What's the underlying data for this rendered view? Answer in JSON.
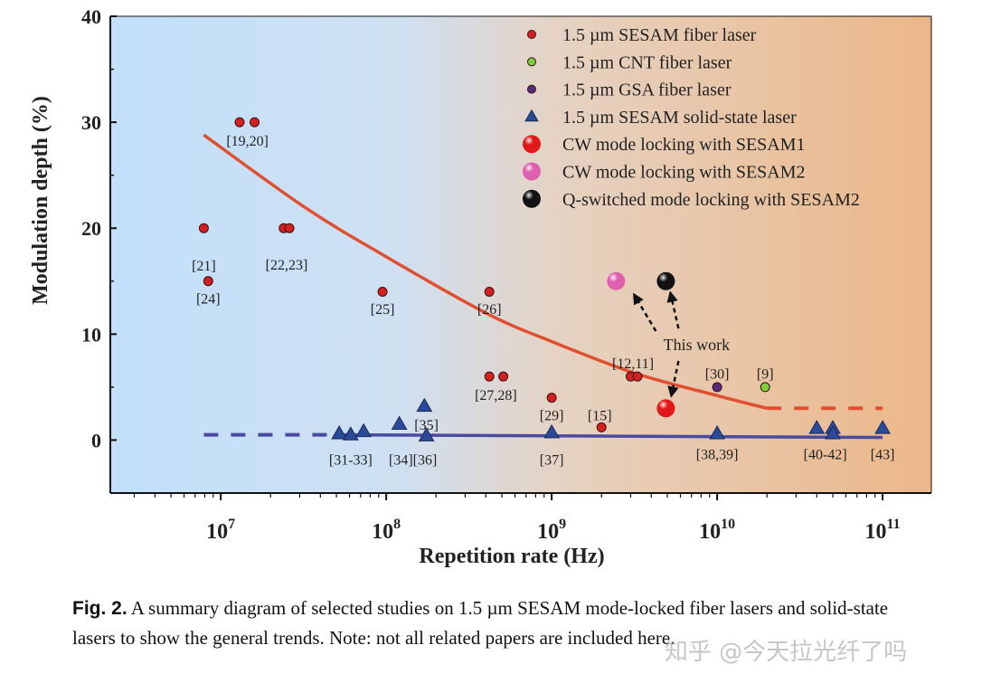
{
  "chart_data": {
    "type": "scatter",
    "title": "",
    "xlabel": "Repetition rate (Hz)",
    "ylabel": "Modulation depth (%)",
    "xscale": "log",
    "xlim": [
      2150000.0,
      197000000000.0
    ],
    "ylim": [
      -5,
      40
    ],
    "xticks": [
      {
        "value": 10000000.0,
        "base": "10",
        "exp": "7"
      },
      {
        "value": 100000000.0,
        "base": "10",
        "exp": "8"
      },
      {
        "value": 1000000000.0,
        "base": "10",
        "exp": "9"
      },
      {
        "value": 10000000000.0,
        "base": "10",
        "exp": "10"
      },
      {
        "value": 100000000000.0,
        "base": "10",
        "exp": "11"
      }
    ],
    "yticks": [
      0,
      10,
      20,
      30,
      40
    ],
    "grid": false,
    "legend_placement": "top-right",
    "background": "gradient light blue to light orange",
    "series": [
      {
        "name": "1.5 µm SESAM fiber laser",
        "marker": "circle-small",
        "color": "#d42020",
        "points": [
          {
            "x": 13000000.0,
            "y": 30
          },
          {
            "x": 16000000.0,
            "y": 30
          },
          {
            "x": 7900000.0,
            "y": 20
          },
          {
            "x": 8400000.0,
            "y": 15
          },
          {
            "x": 24000000.0,
            "y": 20
          },
          {
            "x": 26000000.0,
            "y": 20
          },
          {
            "x": 95000000.0,
            "y": 14
          },
          {
            "x": 420000000.0,
            "y": 14
          },
          {
            "x": 420000000.0,
            "y": 6
          },
          {
            "x": 510000000.0,
            "y": 6
          },
          {
            "x": 1000000000.0,
            "y": 4
          },
          {
            "x": 2000000000.0,
            "y": 1.2
          },
          {
            "x": 3000000000.0,
            "y": 6
          },
          {
            "x": 3300000000.0,
            "y": 6
          }
        ]
      },
      {
        "name": "1.5 µm CNT fiber laser",
        "marker": "circle-small",
        "color": "#7ccf3a",
        "points": [
          {
            "x": 19500000000.0,
            "y": 5
          }
        ]
      },
      {
        "name": "1.5 µm GSA fiber laser",
        "marker": "circle-small",
        "color": "#5a2a7a",
        "points": [
          {
            "x": 10000000000.0,
            "y": 5
          }
        ]
      },
      {
        "name": "1.5 µm SESAM solid-state laser",
        "marker": "triangle",
        "color": "#2b4a9a",
        "points": [
          {
            "x": 52000000.0,
            "y": 0.6
          },
          {
            "x": 61000000.0,
            "y": 0.5
          },
          {
            "x": 73000000.0,
            "y": 0.8
          },
          {
            "x": 120000000.0,
            "y": 1.5
          },
          {
            "x": 170000000.0,
            "y": 3.2
          },
          {
            "x": 175000000.0,
            "y": 0.4
          },
          {
            "x": 1000000000.0,
            "y": 0.7
          },
          {
            "x": 10000000000.0,
            "y": 0.6
          },
          {
            "x": 40000000000.0,
            "y": 1.1
          },
          {
            "x": 50000000000.0,
            "y": 1.1
          },
          {
            "x": 50000000000.0,
            "y": 0.6
          },
          {
            "x": 100000000000.0,
            "y": 1.1
          }
        ]
      },
      {
        "name": "CW mode locking with SESAM1",
        "marker": "sphere",
        "color": "#e01818",
        "points": [
          {
            "x": 4900000000.0,
            "y": 3
          }
        ]
      },
      {
        "name": "CW mode locking with SESAM2",
        "marker": "sphere",
        "color": "#e060b0",
        "points": [
          {
            "x": 2450000000.0,
            "y": 15
          }
        ]
      },
      {
        "name": "Q-switched mode locking with SESAM2",
        "marker": "sphere",
        "color": "#111111",
        "points": [
          {
            "x": 4900000000.0,
            "y": 15
          }
        ]
      }
    ],
    "trend_lines": [
      {
        "color": "#e05030",
        "solid": [
          [
            7900000.0,
            28.8
          ],
          [
            32000000.0,
            22
          ],
          [
            100000000.0,
            17.3
          ],
          [
            400000000.0,
            12
          ],
          [
            1000000000.0,
            9.3
          ],
          [
            3200000000.0,
            6.3
          ],
          [
            10000000000.0,
            4.2
          ],
          [
            20000000000.0,
            3
          ]
        ],
        "dashed": [
          [
            20000000000.0,
            3
          ],
          [
            100000000000.0,
            3
          ]
        ]
      },
      {
        "color": "#4a4aa0",
        "dashed": [
          [
            7900000.0,
            0.5
          ],
          [
            50000000.0,
            0.5
          ]
        ],
        "solid": [
          [
            50000000.0,
            0.5
          ],
          [
            100000000000.0,
            0.25
          ]
        ]
      }
    ],
    "point_labels": [
      {
        "text": "[19,20]",
        "x": 14500000.0,
        "y": 28.3
      },
      {
        "text": "[21]",
        "x": 7900000.0,
        "y": 16.5
      },
      {
        "text": "[24]",
        "x": 8400000.0,
        "y": 13.4
      },
      {
        "text": "[22,23]",
        "x": 25000000.0,
        "y": 16.6
      },
      {
        "text": "[25]",
        "x": 95000000.0,
        "y": 12.4
      },
      {
        "text": "[26]",
        "x": 420000000.0,
        "y": 12.4
      },
      {
        "text": "[27,28]",
        "x": 460000000.0,
        "y": 4.3
      },
      {
        "text": "[29]",
        "x": 1000000000.0,
        "y": 2.4
      },
      {
        "text": "[15]",
        "x": 1950000000.0,
        "y": 2.4
      },
      {
        "text": "[12,11]",
        "x": 3100000000.0,
        "y": 7.3
      },
      {
        "text": "[30]",
        "x": 10000000000.0,
        "y": 6.3
      },
      {
        "text": "[9]",
        "x": 19500000000.0,
        "y": 6.3
      },
      {
        "text": "[35]",
        "x": 175000000.0,
        "y": 1.5
      },
      {
        "text": "[31-33]",
        "x": 61000000.0,
        "y": -1.8
      },
      {
        "text": "[34][36]",
        "x": 145000000.0,
        "y": -1.8
      },
      {
        "text": "[37]",
        "x": 1000000000.0,
        "y": -1.8
      },
      {
        "text": "[38,39]",
        "x": 10000000000.0,
        "y": -1.3
      },
      {
        "text": "[40-42]",
        "x": 45000000000.0,
        "y": -1.3
      },
      {
        "text": "[43]",
        "x": 100000000000.0,
        "y": -1.3
      }
    ],
    "annotation": {
      "text": "This work",
      "x": 8000000000.0,
      "y": 9
    }
  },
  "caption": {
    "label": "Fig. 2.",
    "text": " A summary diagram of selected studies on 1.5 µm SESAM mode-locked fiber lasers and solid-state lasers to show the general trends. Note: not all related papers are included here."
  },
  "watermark": "知乎 @今天拉光纤了吗"
}
